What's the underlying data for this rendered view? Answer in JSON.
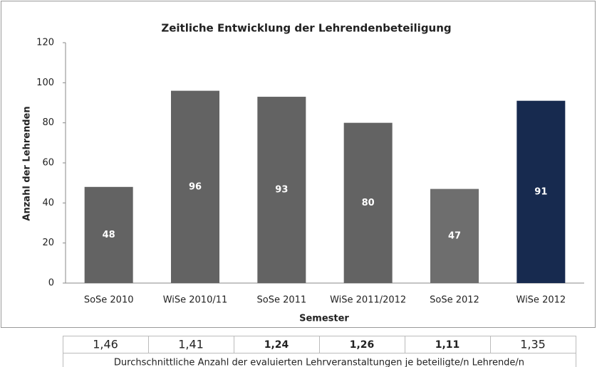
{
  "chart_data": {
    "type": "bar",
    "title": "Zeitliche Entwicklung der Lehrendenbeteiligung",
    "y_label": "Anzahl der Lehrenden",
    "x_label": "Semester",
    "categories": [
      "SoSe 2010",
      "WiSe 2010/11",
      "SoSe 2011",
      "WiSe 2011/2012",
      "SoSe 2012",
      "WiSe 2012"
    ],
    "values": [
      48,
      96,
      93,
      80,
      47,
      91
    ],
    "colors": [
      "#636363",
      "#636363",
      "#636363",
      "#636363",
      "#6e6e6e",
      "#172a4f"
    ],
    "ylim": [
      0,
      120
    ],
    "yticks": [
      0,
      20,
      40,
      60,
      80,
      100,
      120
    ],
    "grid": false
  },
  "table": {
    "rows": [
      [
        "1,46",
        "1,41",
        "1,24",
        "1,26",
        "1,11",
        "1,35"
      ]
    ],
    "caption": "Durchschnittliche Anzahl der evaluierten Lehrveranstaltungen je beteiligte/n Lehrende/n"
  }
}
